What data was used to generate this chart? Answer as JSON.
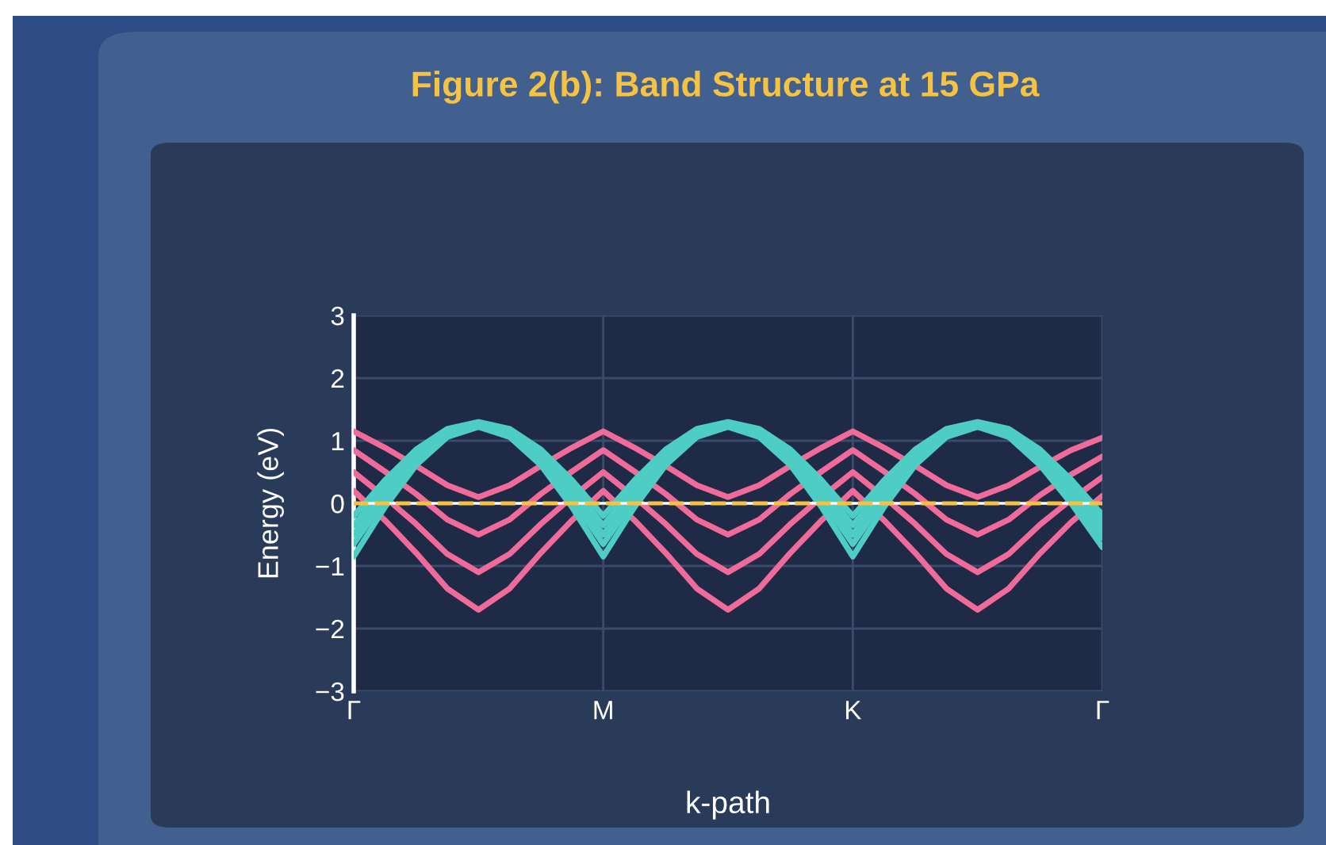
{
  "chart_data": {
    "type": "line",
    "title": "Figure 2(b): Band Structure at 15 GPa",
    "xlabel": "k-path",
    "ylabel": "Energy (eV)",
    "categories": [
      "Γ",
      null,
      null,
      null,
      null,
      null,
      null,
      null,
      "M",
      null,
      null,
      null,
      null,
      null,
      null,
      null,
      "K",
      null,
      null,
      null,
      null,
      null,
      null,
      null,
      "Γ"
    ],
    "series": [
      {
        "color": "#f06a9a",
        "values": [
          1.15,
          0.89,
          0.6,
          0.29,
          0.1,
          0.29,
          0.6,
          0.89,
          1.15,
          0.89,
          0.6,
          0.29,
          0.1,
          0.29,
          0.6,
          0.89,
          1.15,
          0.89,
          0.6,
          0.29,
          0.1,
          0.29,
          0.58,
          0.85,
          1.05
        ]
      },
      {
        "color": "#f06a9a",
        "values": [
          0.85,
          0.51,
          0.15,
          -0.26,
          -0.5,
          -0.26,
          0.15,
          0.51,
          0.85,
          0.51,
          0.15,
          -0.26,
          -0.5,
          -0.26,
          0.15,
          0.51,
          0.85,
          0.51,
          0.15,
          -0.26,
          -0.5,
          -0.26,
          0.13,
          0.46,
          0.75
        ]
      },
      {
        "color": "#f06a9a",
        "values": [
          0.5,
          0.1,
          -0.33,
          -0.81,
          -1.1,
          -0.81,
          -0.33,
          0.1,
          0.5,
          0.1,
          -0.33,
          -0.81,
          -1.1,
          -0.81,
          -0.33,
          0.1,
          0.5,
          0.1,
          -0.33,
          -0.81,
          -1.1,
          -0.81,
          -0.34,
          0.06,
          0.42
        ]
      },
      {
        "color": "#f06a9a",
        "values": [
          0.2,
          -0.27,
          -0.79,
          -1.36,
          -1.7,
          -1.36,
          -0.79,
          -0.27,
          0.2,
          -0.27,
          -0.79,
          -1.36,
          -1.7,
          -1.36,
          -0.79,
          -0.27,
          0.2,
          -0.27,
          -0.79,
          -1.36,
          -1.7,
          -1.36,
          -0.8,
          -0.3,
          0.12
        ]
      },
      {
        "color": "#4ecdc4",
        "values": [
          -0.85,
          -0.06,
          0.61,
          1.06,
          1.22,
          1.06,
          0.61,
          -0.06,
          -0.85,
          -0.06,
          0.61,
          1.06,
          1.22,
          1.06,
          0.61,
          -0.06,
          -0.85,
          -0.06,
          0.61,
          1.06,
          1.22,
          1.06,
          0.61,
          0.0,
          -0.7
        ]
      },
      {
        "color": "#4ecdc4",
        "values": [
          -0.65,
          0.07,
          0.69,
          1.1,
          1.24,
          1.1,
          0.69,
          0.07,
          -0.65,
          0.07,
          0.69,
          1.1,
          1.24,
          1.1,
          0.69,
          0.07,
          -0.65,
          0.07,
          0.69,
          1.1,
          1.24,
          1.1,
          0.69,
          0.1,
          -0.55
        ]
      },
      {
        "color": "#4ecdc4",
        "values": [
          -0.5,
          0.17,
          0.74,
          1.13,
          1.26,
          1.13,
          0.74,
          0.17,
          -0.5,
          0.17,
          0.74,
          1.13,
          1.26,
          1.13,
          0.74,
          0.17,
          -0.5,
          0.17,
          0.74,
          1.13,
          1.26,
          1.13,
          0.74,
          0.2,
          -0.42
        ]
      },
      {
        "color": "#4ecdc4",
        "values": [
          -0.35,
          0.27,
          0.8,
          1.16,
          1.28,
          1.16,
          0.8,
          0.27,
          -0.35,
          0.27,
          0.8,
          1.16,
          1.28,
          1.16,
          0.8,
          0.27,
          -0.35,
          0.27,
          0.8,
          1.16,
          1.28,
          1.16,
          0.8,
          0.3,
          -0.3
        ]
      },
      {
        "color": "#4ecdc4",
        "values": [
          -0.2,
          0.37,
          0.86,
          1.19,
          1.3,
          1.19,
          0.86,
          0.37,
          -0.2,
          0.37,
          0.86,
          1.19,
          1.3,
          1.19,
          0.86,
          0.37,
          -0.2,
          0.37,
          0.86,
          1.19,
          1.3,
          1.19,
          0.86,
          0.38,
          -0.18
        ]
      }
    ],
    "ref_lines": [
      {
        "axis": "y",
        "value": 0,
        "color": "#ffffff",
        "line_style": "solid"
      },
      {
        "axis": "y",
        "value": 0,
        "color": "#f5c242",
        "line_style": "dashed"
      }
    ],
    "ylim": [
      -3,
      3
    ],
    "yticks": [
      -3,
      -2,
      -1,
      0,
      1,
      2,
      3
    ],
    "grid": true,
    "line_style": "solid",
    "marker": "none"
  }
}
